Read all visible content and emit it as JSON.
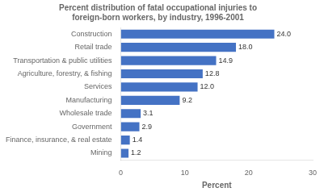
{
  "chart_data": {
    "type": "bar",
    "orientation": "horizontal",
    "title": "Percent distribution of fatal occupational injuries to\nforeign-born workers, by industry, 1996-2001",
    "xlabel": "Percent",
    "categories": [
      "Construction",
      "Retail trade",
      "Transportation & public utilities",
      "Agriculture, forestry, & fishing",
      "Services",
      "Manufacturing",
      "Wholesale trade",
      "Government",
      "Finance, insurance, & real estate",
      "Mining"
    ],
    "values": [
      24.0,
      18.0,
      14.9,
      12.8,
      12.0,
      9.2,
      3.1,
      2.9,
      1.4,
      1.2
    ],
    "value_labels": [
      "24.0",
      "18.0",
      "14.9",
      "12.8",
      "12.0",
      "9.2",
      "3.1",
      "2.9",
      "1.4",
      "1.2"
    ],
    "data_labels": true,
    "color": "#4472c4",
    "xlim": [
      0,
      30
    ],
    "xticks": [
      0,
      10,
      20,
      30
    ],
    "grid": false
  }
}
